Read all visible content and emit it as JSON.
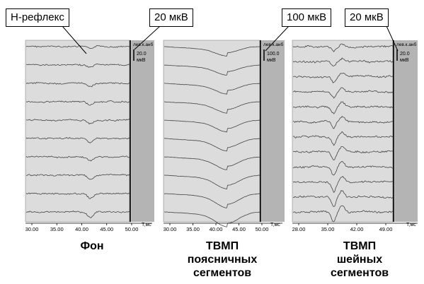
{
  "callouts": {
    "h_reflex": "Н-рефлекс",
    "scale_left": "20 мкВ",
    "scale_mid": "100 мкВ",
    "scale_right": "20 мкВ"
  },
  "panels": [
    {
      "id": "fon",
      "caption_lines": [
        "Фон"
      ],
      "side_header": "лев.к.анб",
      "scale_value": "20.0",
      "scale_unit": "мкВ",
      "axis_label": "T,мс",
      "ticks": [
        "30.00",
        "35.00",
        "40.00",
        "45.00",
        "50.00"
      ],
      "trace_count": 10
    },
    {
      "id": "lumbar",
      "caption_lines": [
        "ТВМП",
        "поясничных",
        "сегментов"
      ],
      "side_header": "лев.к.анб",
      "scale_value": "100.0",
      "scale_unit": "мкВ",
      "axis_label": "T,мс",
      "ticks": [
        "30.00",
        "35.00",
        "40.00",
        "45.00",
        "50.00"
      ],
      "trace_count": 10
    },
    {
      "id": "cervical",
      "caption_lines": [
        "ТВМП",
        "шейных",
        "сегментов"
      ],
      "side_header": "лев.к.анб",
      "scale_value": "20.0",
      "scale_unit": "мкВ",
      "axis_label": "T,мс",
      "ticks": [
        "28.00",
        "35.00",
        "42.00",
        "49.00"
      ],
      "trace_count": 12
    }
  ],
  "colors": {
    "plot_bg": "#dcdcdc",
    "side_bg": "#b4b4b4",
    "trace": "#444444"
  }
}
